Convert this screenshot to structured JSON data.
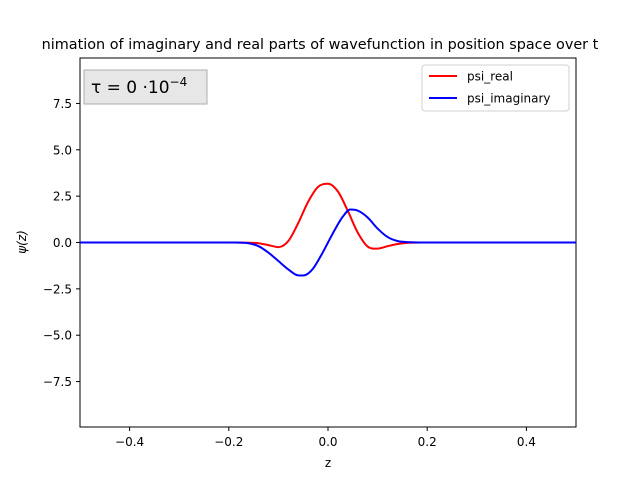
{
  "chart_data": {
    "type": "line",
    "title": "nimation of imaginary and real parts of wavefunction in position space over t",
    "xlabel": "z",
    "ylabel": "ψ(z)",
    "xlim": [
      -0.5,
      0.5
    ],
    "ylim": [
      -9.95,
      9.95
    ],
    "xticks": [
      -0.4,
      -0.2,
      0.0,
      0.2,
      0.4
    ],
    "xtick_labels": [
      "−0.4",
      "−0.2",
      "0.0",
      "0.2",
      "0.4"
    ],
    "yticks": [
      -7.5,
      -5.0,
      -2.5,
      0.0,
      2.5,
      5.0,
      7.5
    ],
    "ytick_labels": [
      "−7.5",
      "−5.0",
      "−2.5",
      "0.0",
      "2.5",
      "5.0",
      "7.5"
    ],
    "grid": false,
    "legend_position": "top-right",
    "annotation": {
      "prefix": "τ = 0 ·10",
      "exponent": "−4"
    },
    "series": [
      {
        "name": "psi_real",
        "color": "#ff0000",
        "x": [
          -0.5,
          -0.25,
          -0.2,
          -0.16,
          -0.14,
          -0.12,
          -0.1,
          -0.08,
          -0.06,
          -0.04,
          -0.02,
          0.0,
          0.02,
          0.04,
          0.06,
          0.08,
          0.1,
          0.12,
          0.14,
          0.16,
          0.2,
          0.25,
          0.5
        ],
        "y": [
          0.0,
          0.0,
          0.0,
          -0.01,
          -0.04,
          -0.14,
          -0.25,
          0.08,
          1.05,
          2.2,
          3.0,
          3.17,
          2.75,
          1.7,
          0.53,
          -0.22,
          -0.33,
          -0.2,
          -0.08,
          -0.02,
          0.0,
          0.0,
          0.0
        ]
      },
      {
        "name": "psi_imaginary",
        "color": "#0000ff",
        "x": [
          -0.5,
          -0.25,
          -0.2,
          -0.16,
          -0.14,
          -0.12,
          -0.1,
          -0.08,
          -0.06,
          -0.045,
          -0.03,
          -0.015,
          0.0,
          0.015,
          0.03,
          0.045,
          0.06,
          0.08,
          0.1,
          0.12,
          0.14,
          0.16,
          0.2,
          0.25,
          0.5
        ],
        "y": [
          0.0,
          0.0,
          0.0,
          -0.04,
          -0.2,
          -0.55,
          -1.0,
          -1.45,
          -1.77,
          -1.75,
          -1.4,
          -0.75,
          0.0,
          0.75,
          1.4,
          1.78,
          1.72,
          1.35,
          0.75,
          0.3,
          0.08,
          0.02,
          0.0,
          0.0,
          0.0
        ]
      }
    ]
  }
}
